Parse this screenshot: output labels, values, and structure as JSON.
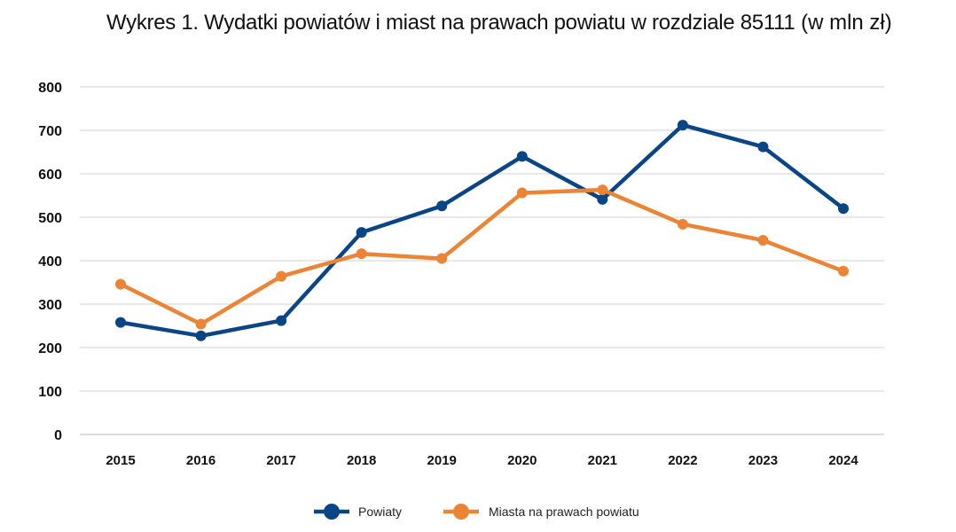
{
  "title": {
    "main": "Wykres 1. Wydatki powiatów i miast na prawach powiatu w rozdziale 85111",
    "unit": "(w mln zł)"
  },
  "chart_data": {
    "type": "line",
    "title": "Wykres 1. Wydatki powiatów i miast na prawach powiatu w rozdziale 85111 (w mln zł)",
    "xlabel": "",
    "ylabel": "",
    "categories": [
      "2015",
      "2016",
      "2017",
      "2018",
      "2019",
      "2020",
      "2021",
      "2022",
      "2023",
      "2024"
    ],
    "ylim": [
      0,
      800
    ],
    "yticks": [
      "0",
      "100",
      "200",
      "300",
      "400",
      "500",
      "600",
      "700",
      "800"
    ],
    "grid": true,
    "legend_position": "bottom",
    "series": [
      {
        "name": "Powiaty",
        "color": "#0a4585",
        "values": [
          258,
          227,
          262,
          465,
          526,
          640,
          541,
          712,
          662,
          520
        ]
      },
      {
        "name": "Miasta na prawach powiatu",
        "color": "#ec8436",
        "values": [
          346,
          254,
          364,
          416,
          405,
          556,
          563,
          484,
          447,
          376
        ]
      }
    ]
  }
}
